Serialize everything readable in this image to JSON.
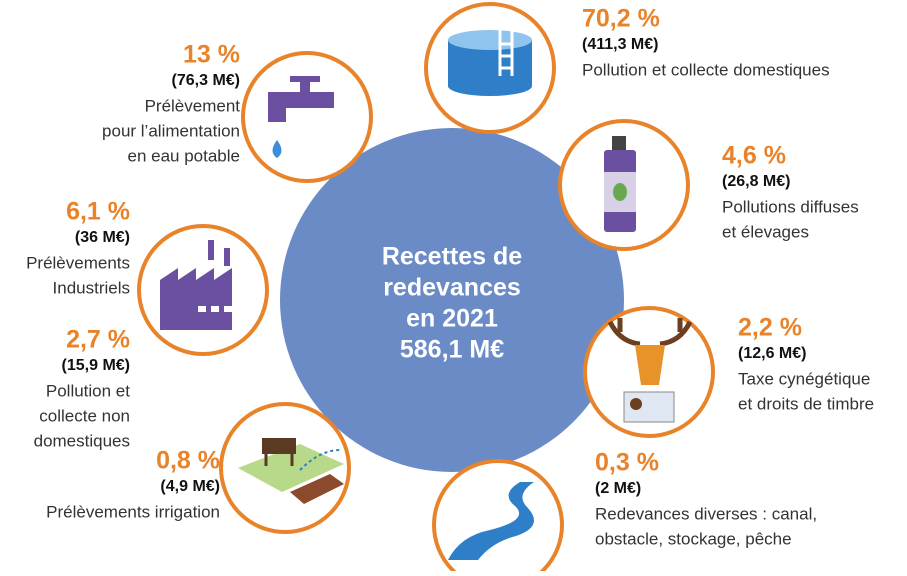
{
  "center": {
    "lines": [
      "Recettes de",
      "redevances",
      "en 2021",
      "586,1 M€"
    ]
  },
  "items": [
    {
      "percent": "13 %",
      "amount": "(76,3 M€)",
      "description": [
        "Prélèvement",
        "pour l’alimentation",
        "en eau potable"
      ]
    },
    {
      "percent": "70,2 %",
      "amount": "(411,3 M€)",
      "description": [
        "Pollution et collecte domestiques"
      ]
    },
    {
      "percent": "4,6 %",
      "amount": "(26,8 M€)",
      "description": [
        "Pollutions diffuses",
        "et élevages"
      ]
    },
    {
      "percent": "6,1 %",
      "amount": "(36 M€)",
      "description": [
        "Prélèvements",
        "Industriels"
      ]
    },
    {
      "percent": "2,2 %",
      "amount": "(12,6 M€)",
      "description": [
        "Taxe cynégétique",
        "et droits de timbre"
      ]
    },
    {
      "percent": "2,7 %",
      "amount": "(15,9 M€)",
      "description": [
        "Pollution et",
        "collecte non",
        "domestiques"
      ]
    },
    {
      "percent": "0,8 %",
      "amount": "(4,9 M€)",
      "description": [
        "Prélèvements irrigation"
      ]
    },
    {
      "percent": "0,3 %",
      "amount": "(2 M€)",
      "description": [
        "Redevances diverses : canal,",
        "obstacle, stockage, pêche"
      ]
    }
  ]
}
